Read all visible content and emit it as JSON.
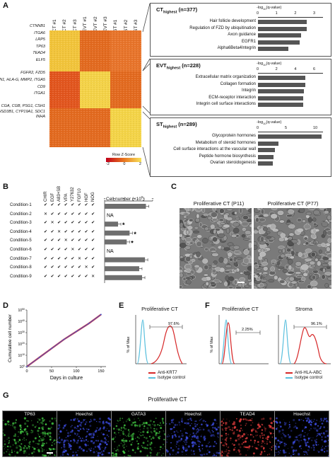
{
  "panelA": {
    "label": "A",
    "columns": [
      "CT #1",
      "CT #2",
      "CT #3",
      "EVT #1",
      "EVT #2",
      "EVT #3",
      "ST #1",
      "ST #2",
      "ST #3"
    ],
    "genes_ct": [
      "CTNNB1",
      "ITGA6",
      "LRP5",
      "TP63",
      "TEAD4",
      "ELF5"
    ],
    "genes_evt": [
      "FGFR2, FZD5",
      "FN1, HLA-G, MMP2, ITGA5",
      "CD9",
      "ITGA1"
    ],
    "genes_st": [
      "CGA, CGB, PSG1, CSH1",
      "HSD3B1, CYP19A1, SDC1",
      "INHA"
    ],
    "legend_title": "Row Z-Score",
    "legend_ticks": [
      "-2",
      "0",
      "2"
    ],
    "axis_title": "-log",
    "axis_sub": "10",
    "axis_title_rest": "(q-value)",
    "boxes": [
      {
        "title_a": "CT",
        "title_b": "highest",
        "title_c": " (n=377)",
        "ticks": [
          "0",
          "1",
          "2",
          "3"
        ],
        "max": 3,
        "terms": [
          {
            "label": "Hair follicle development",
            "value": 2.6
          },
          {
            "label": "Regulation of FZD by ubiquitination",
            "value": 2.6
          },
          {
            "label": "Axon guidance",
            "value": 2.3
          },
          {
            "label": "EGFR1",
            "value": 2.2
          },
          {
            "label": "Alpha6Beta4Integrin",
            "value": 1.6
          }
        ]
      },
      {
        "title_a": "EVT",
        "title_b": "highest",
        "title_c": " (n=228)",
        "ticks": [
          "0",
          "2",
          "4",
          "6"
        ],
        "max": 6,
        "terms": [
          {
            "label": "Extracellular matrix organization",
            "value": 5.0
          },
          {
            "label": "Collagen formation",
            "value": 5.0
          },
          {
            "label": "Integrin",
            "value": 4.9
          },
          {
            "label": "ECM-receptor interaction",
            "value": 4.8
          },
          {
            "label": "Integrin cell surface interactions",
            "value": 4.8
          }
        ]
      },
      {
        "title_a": "ST",
        "title_b": "highest",
        "title_c": " (n=289)",
        "ticks": [
          "0",
          "5",
          "10"
        ],
        "max": 10,
        "terms": [
          {
            "label": "Glycoprotein hormones",
            "value": 11.2
          },
          {
            "label": "Metabolism of steroid hormones",
            "value": 3.6
          },
          {
            "label": "Cell surface interactions at the vascular wall",
            "value": 3.0
          },
          {
            "label": "Peptide hormone biosynthesis",
            "value": 2.8
          },
          {
            "label": "Ovarian steroidogenesis",
            "value": 2.6
          }
        ]
      }
    ]
  },
  "panelB": {
    "label": "B",
    "factors": [
      "CHIR",
      "EGF",
      "A83+SB",
      "VPA",
      "Y27632",
      "FGF10",
      "HGF",
      "NOG"
    ],
    "axis_label": "Cell number (×10",
    "axis_sup": "5",
    "axis_close": ")",
    "ticks": [
      "0",
      "1",
      "2",
      "3",
      "4",
      "5"
    ],
    "max": 5,
    "na_label": "NA",
    "conditions": [
      {
        "name": "Condition-1",
        "marks": [
          "✔",
          "✔",
          "✔",
          "✔",
          "✔",
          "✔",
          "✔",
          "✔"
        ],
        "value": 4.3,
        "sig": ""
      },
      {
        "name": "Condition-2",
        "marks": [
          "✕",
          "✔",
          "✔",
          "✔",
          "✔",
          "✔",
          "✔",
          "✔"
        ],
        "value": null,
        "sig": ""
      },
      {
        "name": "Condition-3",
        "marks": [
          "✔",
          "✕",
          "✔",
          "✔",
          "✔",
          "✔",
          "✔",
          "✔"
        ],
        "value": 1.4,
        "sig": "*"
      },
      {
        "name": "Condition-4",
        "marks": [
          "✔",
          "✔",
          "✕",
          "✔",
          "✔",
          "✔",
          "✔",
          "✔"
        ],
        "value": 2.6,
        "sig": "*"
      },
      {
        "name": "Condition-5",
        "marks": [
          "✔",
          "✔",
          "✔",
          "✕",
          "✔",
          "✔",
          "✔",
          "✔"
        ],
        "value": 2.3,
        "sig": "*"
      },
      {
        "name": "Condition-6",
        "marks": [
          "✔",
          "✔",
          "✔",
          "✔",
          "✕",
          "✔",
          "✔",
          "✔"
        ],
        "value": null,
        "sig": ""
      },
      {
        "name": "Condition-7",
        "marks": [
          "✔",
          "✔",
          "✔",
          "✔",
          "✔",
          "✕",
          "✔",
          "✔"
        ],
        "value": 4.2,
        "sig": ""
      },
      {
        "name": "Condition-8",
        "marks": [
          "✔",
          "✔",
          "✔",
          "✔",
          "✔",
          "✔",
          "✕",
          "✔"
        ],
        "value": 3.6,
        "sig": ""
      },
      {
        "name": "Condition-9",
        "marks": [
          "✔",
          "✔",
          "✔",
          "✔",
          "✔",
          "✔",
          "✔",
          "✕"
        ],
        "value": 3.9,
        "sig": ""
      }
    ]
  },
  "panelC": {
    "label": "C",
    "images": [
      {
        "title": "Proliferative CT (P11)"
      },
      {
        "title": "Proliferative CT (P77)"
      }
    ]
  },
  "panelD": {
    "label": "D",
    "ylabel": "Cumulative cell number",
    "xlabel": "Days in culture",
    "xticks": [
      "0",
      "50",
      "100",
      "150"
    ],
    "yticks": [
      "10^0",
      "10^10",
      "10^20",
      "10^30",
      "10^40",
      "10^50"
    ]
  },
  "chart_data": [
    {
      "type": "bar",
      "categories": [
        "Condition-1",
        "Condition-2",
        "Condition-3",
        "Condition-4",
        "Condition-5",
        "Condition-6",
        "Condition-7",
        "Condition-8",
        "Condition-9"
      ],
      "values": [
        4.3,
        null,
        1.4,
        2.6,
        2.3,
        null,
        4.2,
        3.6,
        3.9
      ],
      "title": "",
      "xlabel": "Cell number (×10⁵)",
      "ylabel": "",
      "xlim": [
        0,
        5
      ]
    },
    {
      "type": "line",
      "x": [
        0,
        25,
        50,
        75,
        100,
        125,
        150
      ],
      "series": [
        {
          "values": [
            0,
            8,
            16,
            24,
            31,
            38,
            46
          ]
        }
      ],
      "title": "",
      "xlabel": "Days in culture",
      "ylabel": "Cumulative cell number",
      "xlim": [
        0,
        160
      ],
      "ylim": [
        0,
        50
      ]
    },
    {
      "type": "line",
      "title": "Proliferative CT",
      "xlabel": "",
      "ylabel": "% of Max",
      "annotation": "97.6%",
      "series": [
        {
          "name": "Anti-KRT7"
        },
        {
          "name": "Isotype control"
        }
      ]
    },
    {
      "type": "line",
      "title": "Proliferative CT",
      "xlabel": "",
      "ylabel": "% of Max",
      "annotation": "2.25%",
      "series": [
        {
          "name": "Anti-HLA-ABC"
        },
        {
          "name": "Isotype control"
        }
      ]
    },
    {
      "type": "line",
      "title": "Stroma",
      "xlabel": "",
      "ylabel": "% of Max",
      "annotation": "96.1%",
      "series": [
        {
          "name": "Anti-HLA-ABC"
        },
        {
          "name": "Isotype control"
        }
      ]
    }
  ],
  "panelE": {
    "label": "E",
    "title": "Proliferative CT",
    "ylabel": "% of Max",
    "pct": "97.6%",
    "legend": [
      {
        "name": "Anti-KRT7",
        "color": "#d62728"
      },
      {
        "name": "Isotype control",
        "color": "#5bc0de"
      }
    ]
  },
  "panelF": {
    "label": "F",
    "title1": "Proliferative CT",
    "title2": "Stroma",
    "ylabel": "% of Max",
    "pct1": "2.25%",
    "pct2": "96.1%",
    "legend": [
      {
        "name": "Anti-HLA-ABC",
        "color": "#d62728"
      },
      {
        "name": "Isotype control",
        "color": "#5bc0de"
      }
    ]
  },
  "panelG": {
    "label": "G",
    "title": "Proliferative CT",
    "images": [
      {
        "label": "TP63",
        "color": "#3fbf3f"
      },
      {
        "label": "Hoechst",
        "color": "#3a49d8"
      },
      {
        "label": "GATA3",
        "color": "#3fbf3f"
      },
      {
        "label": "Hoechst",
        "color": "#3a49d8"
      },
      {
        "label": "TEAD4",
        "color": "#d83a3a"
      },
      {
        "label": "Hoechst",
        "color": "#3a49d8"
      }
    ]
  }
}
